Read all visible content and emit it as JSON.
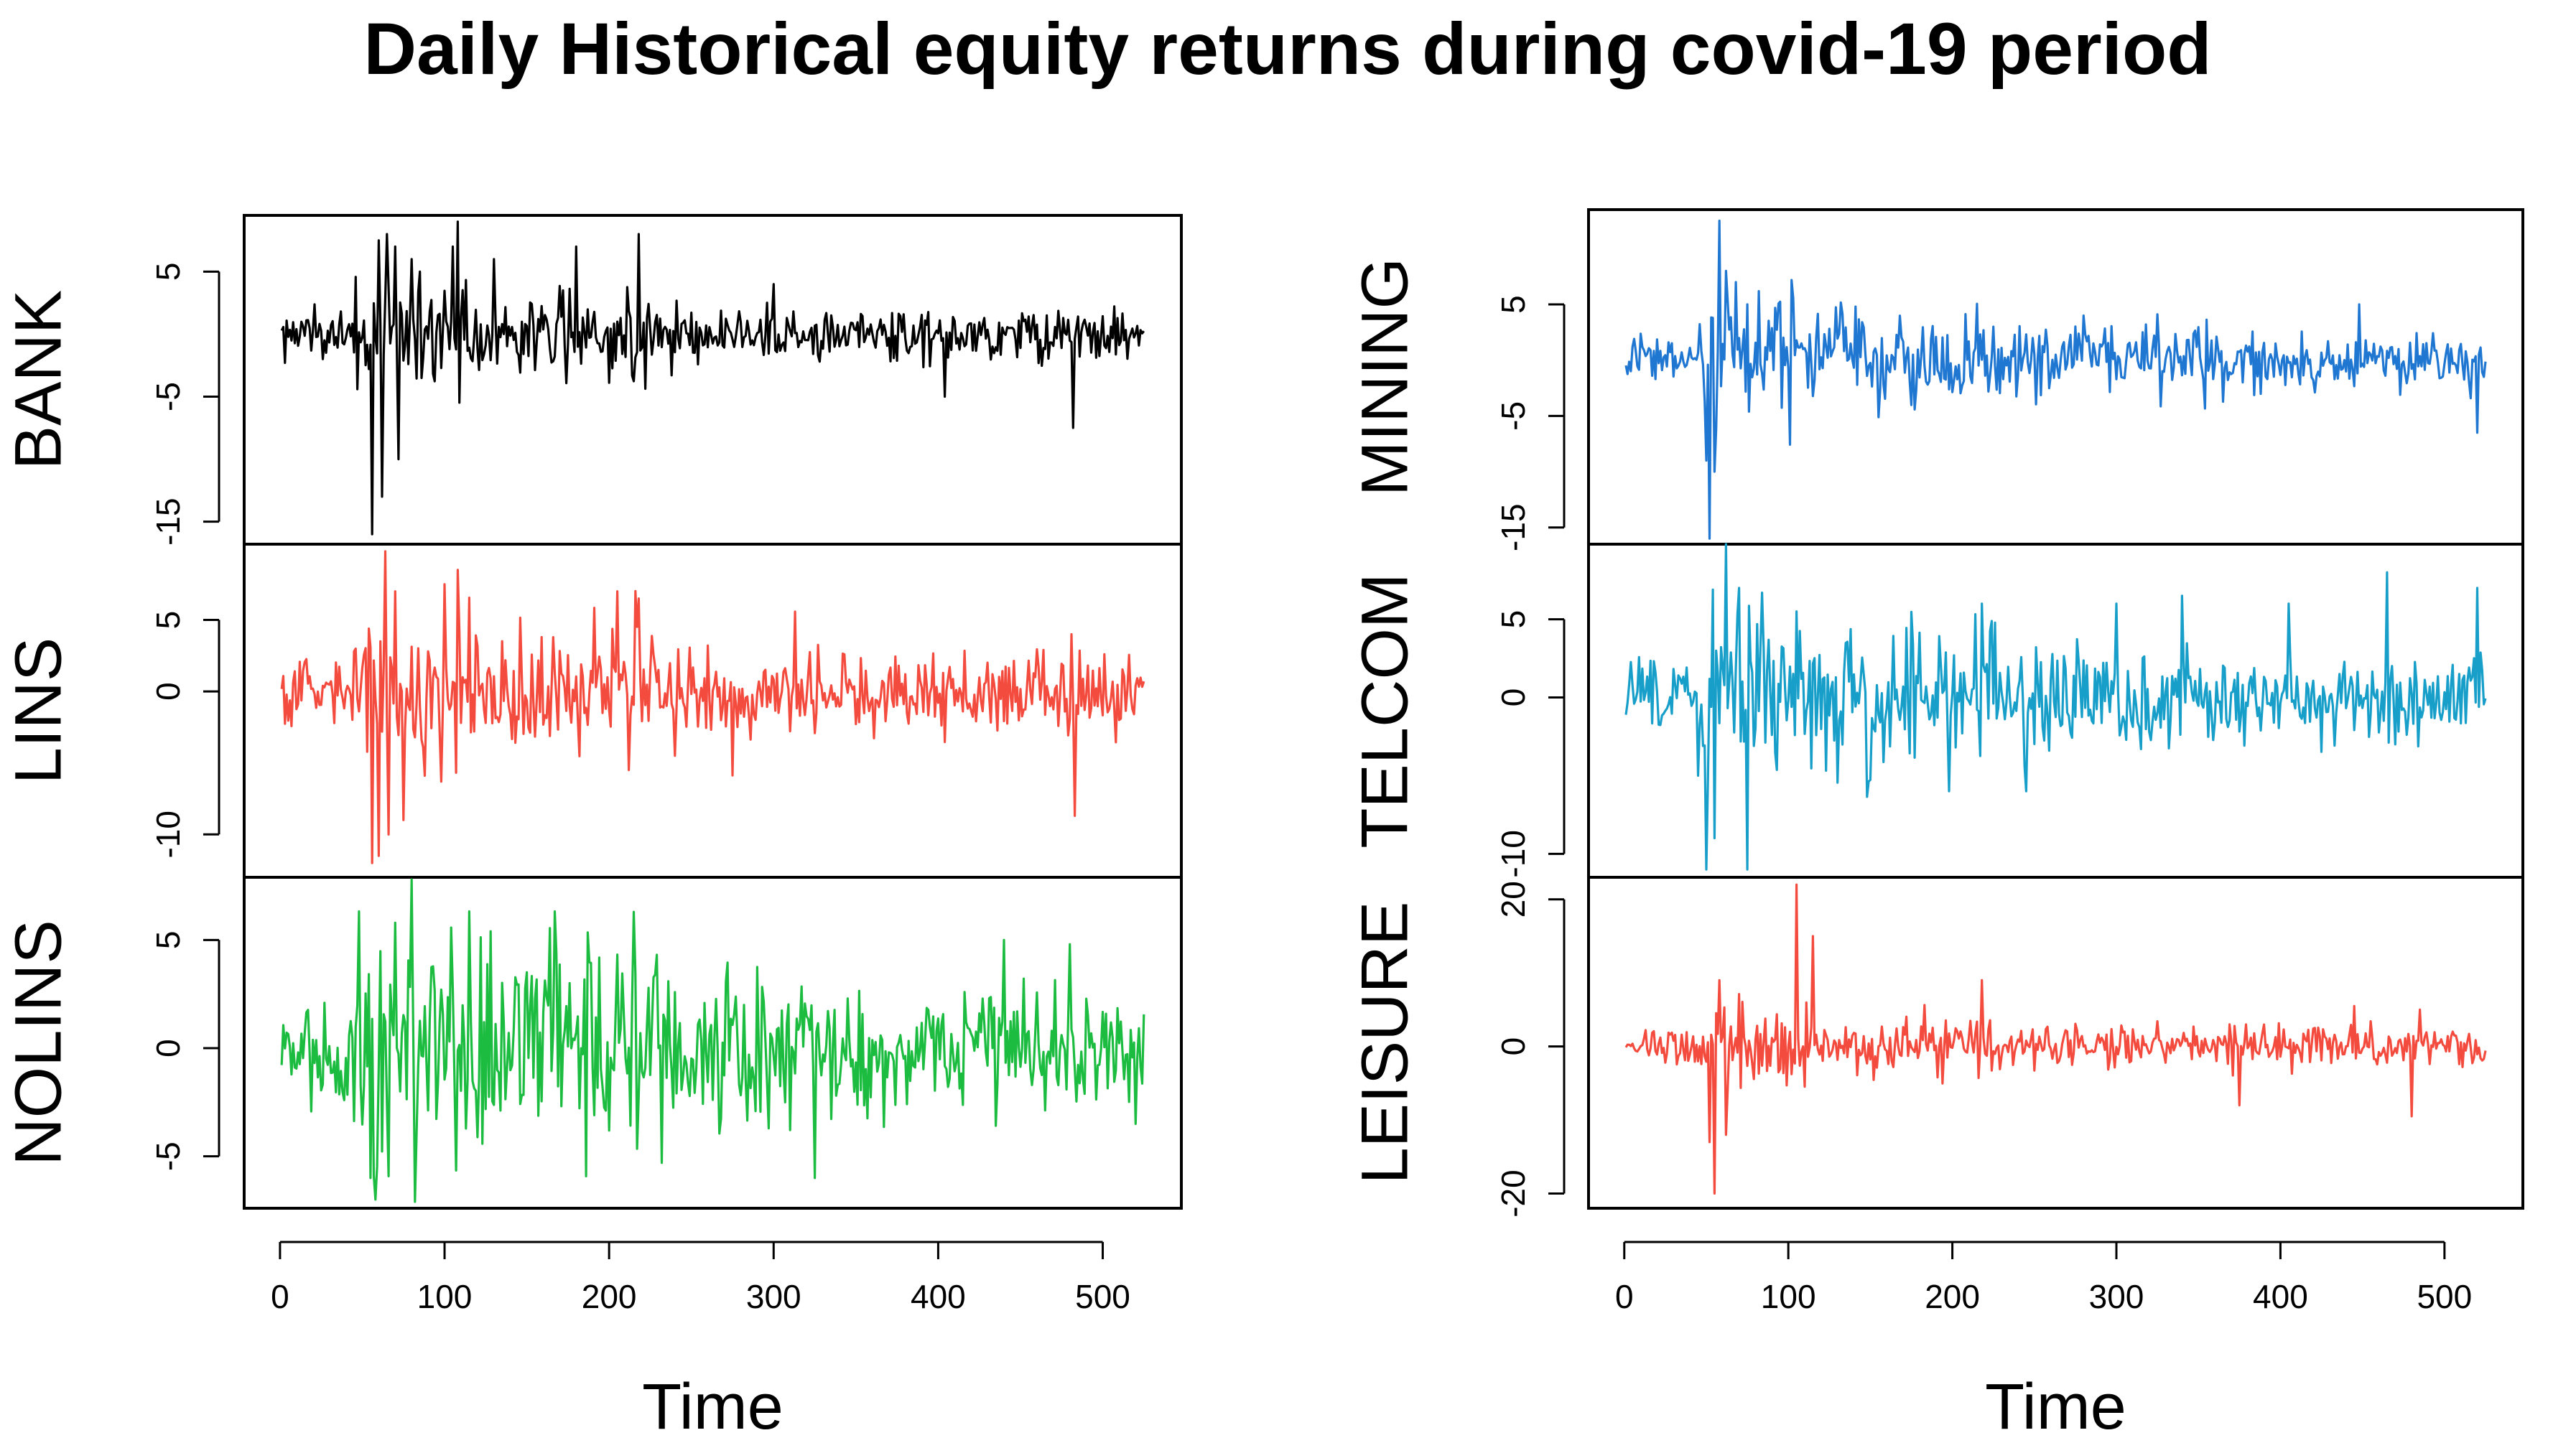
{
  "chart_data": {
    "type": "line",
    "title": "Daily Historical equity returns during covid-19 period",
    "xlabel": "Time",
    "xlim": [
      1,
      525
    ],
    "x_ticks": [
      0,
      100,
      200,
      300,
      400,
      500
    ],
    "x_tick_labels": [
      "0",
      "100",
      "200",
      "300",
      "400",
      "500"
    ],
    "grid": false,
    "legend": "none",
    "n_points": 525,
    "columns": [
      {
        "name": "left",
        "xlabel": "Time",
        "panels": [
          {
            "name": "BANK",
            "color": "#000000",
            "ylim": [
              -16.8,
              9.5
            ],
            "y_ticks": [
              -15,
              -5,
              5
            ],
            "y_tick_labels": [
              "-15",
              "-5",
              "5"
            ],
            "base_sd": 1.3,
            "shocks": [
              [
                56,
                -16.0
              ],
              [
                60,
                7.5
              ],
              [
                62,
                -13.0
              ],
              [
                65,
                8.0
              ],
              [
                70,
                7.0
              ],
              [
                72,
                -10.0
              ],
              [
                80,
                6.0
              ],
              [
                85,
                5.0
              ],
              [
                105,
                7.0
              ],
              [
                108,
                9.0
              ],
              [
                130,
                6.0
              ],
              [
                180,
                7.0
              ],
              [
                218,
                8.0
              ],
              [
                300,
                4.0
              ],
              [
                404,
                -5.0
              ],
              [
                482,
                -7.5
              ]
            ]
          },
          {
            "name": "LINS",
            "color": "#f44b3f",
            "ylim": [
              -13.0,
              10.3
            ],
            "y_ticks": [
              -10,
              0,
              5
            ],
            "y_tick_labels": [
              "-10",
              "0",
              "5"
            ],
            "base_sd": 1.6,
            "shocks": [
              [
                56,
                -12.0
              ],
              [
                60,
                -11.5
              ],
              [
                64,
                9.8
              ],
              [
                66,
                -10.0
              ],
              [
                70,
                7.0
              ],
              [
                75,
                -9.0
              ],
              [
                100,
                7.5
              ],
              [
                108,
                8.5
              ],
              [
                205,
                7.0
              ],
              [
                212,
                -5.5
              ],
              [
                218,
                6.5
              ],
              [
                240,
                -4.5
              ],
              [
                481,
                4.0
              ],
              [
                483,
                -8.7
              ],
              [
                510,
                -2.0
              ]
            ]
          },
          {
            "name": "NOLINS",
            "color": "#1cbc41",
            "ylim": [
              -7.4,
              7.9
            ],
            "y_ticks": [
              -5,
              0,
              5
            ],
            "y_tick_labels": [
              "-5",
              "0",
              "5"
            ],
            "base_sd": 1.7,
            "shocks": [
              [
                55,
                -6.0
              ],
              [
                58,
                -7.0
              ],
              [
                80,
                7.8
              ],
              [
                82,
                -7.1
              ],
              [
                70,
                5.8
              ],
              [
                215,
                6.3
              ],
              [
                232,
                -5.3
              ],
              [
                325,
                -6.0
              ],
              [
                440,
                5.0
              ],
              [
                480,
                4.8
              ],
              [
                520,
                -3.5
              ]
            ]
          }
        ]
      },
      {
        "name": "right",
        "xlabel": "Time",
        "panels": [
          {
            "name": "MINING",
            "color": "#1f77d2",
            "ylim": [
              -16.5,
              13.5
            ],
            "y_ticks": [
              -15,
              -5,
              5
            ],
            "y_tick_labels": [
              "-15",
              "-5",
              "5"
            ],
            "base_sd": 1.6,
            "shocks": [
              [
                50,
                -9.0
              ],
              [
                52,
                -16.0
              ],
              [
                55,
                -10.0
              ],
              [
                58,
                12.5
              ],
              [
                62,
                8.0
              ],
              [
                68,
                7.0
              ],
              [
                75,
                5.0
              ],
              [
                280,
                4.0
              ],
              [
                448,
                5.0
              ],
              [
                520,
                -6.5
              ]
            ]
          },
          {
            "name": "LEISURE",
            "color": "#f44b3f",
            "ylim": [
              -22.0,
              23.0
            ],
            "y_ticks": [
              -20,
              0,
              20
            ],
            "y_tick_labels": [
              "-20",
              "0",
              "20"
            ],
            "base_sd": 1.5,
            "shocks": [
              [
                52,
                -13.0
              ],
              [
                55,
                -20.0
              ],
              [
                58,
                9.0
              ],
              [
                62,
                -12.0
              ],
              [
                105,
                22.0
              ],
              [
                115,
                15.0
              ],
              [
                218,
                9.0
              ],
              [
                375,
                -8.0
              ],
              [
                445,
                5.5
              ],
              [
                480,
                -9.5
              ],
              [
                485,
                5.0
              ]
            ]
          },
          {
            "name": "TELCOM",
            "color": "#189fc9",
            "ylim": [
              -11.5,
              9.8
            ],
            "y_ticks": [
              -10,
              0,
              5
            ],
            "y_tick_labels": [
              "-10",
              "0",
              "5"
            ],
            "base_sd": 1.7,
            "shocks": [
              [
                45,
                -5.0
              ],
              [
                50,
                -11.0
              ],
              [
                55,
                -9.0
              ],
              [
                62,
                9.8
              ],
              [
                70,
                7.0
              ],
              [
                75,
                -11.0
              ],
              [
                218,
                6.0
              ],
              [
                245,
                -6.0
              ],
              [
                300,
                6.0
              ],
              [
                340,
                6.5
              ],
              [
                405,
                6.0
              ],
              [
                465,
                8.0
              ],
              [
                470,
                -3.0
              ],
              [
                520,
                7.0
              ]
            ]
          }
        ]
      }
    ]
  }
}
